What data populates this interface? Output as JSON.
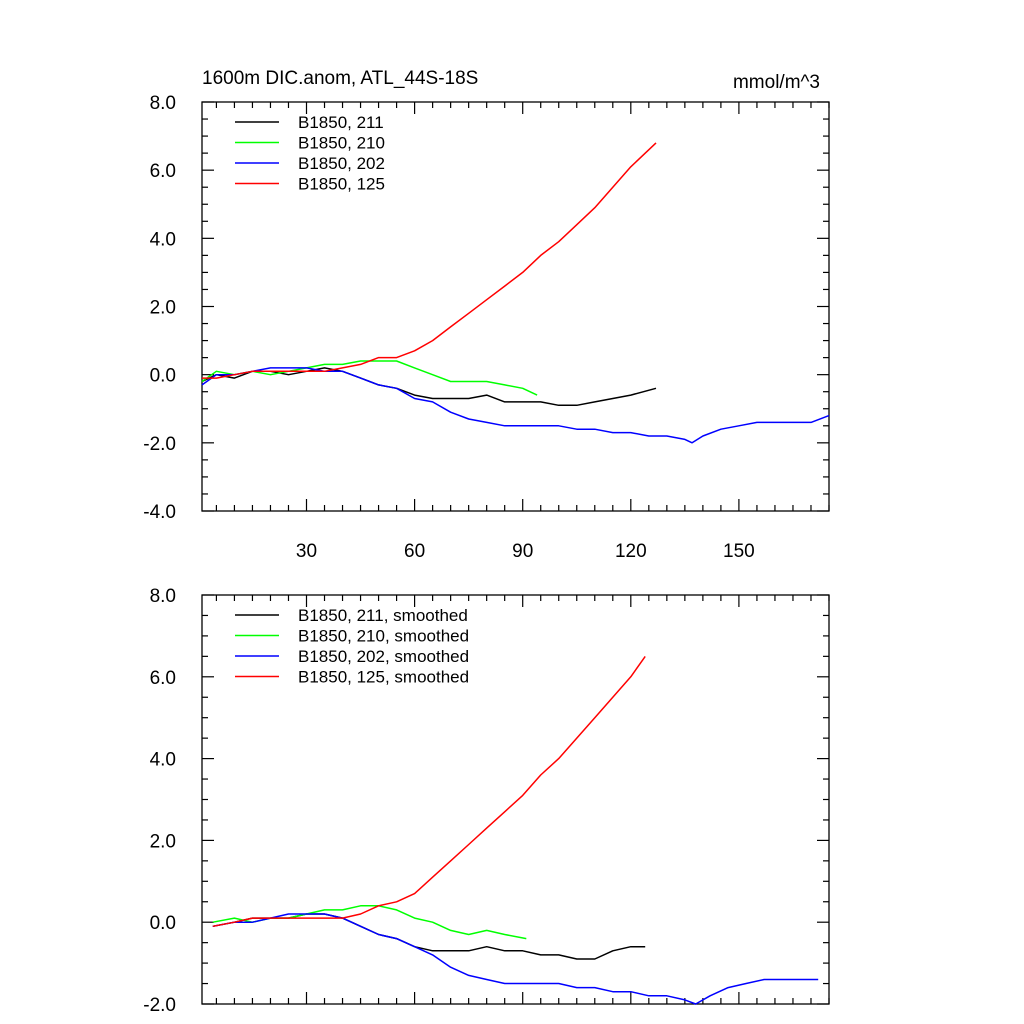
{
  "chart_data": [
    {
      "type": "line",
      "title": "1600m DIC.anom, ATL_44S-18S",
      "units": "mmol/m^3",
      "xlim": [
        1,
        175
      ],
      "ylim": [
        -4.0,
        8.0
      ],
      "xticks": [
        30,
        60,
        90,
        120,
        150
      ],
      "xtick_labels": [
        "30",
        "60",
        "90",
        "120",
        "150"
      ],
      "yticks": [
        -4.0,
        -2.0,
        0.0,
        2.0,
        4.0,
        6.0,
        8.0
      ],
      "ytick_labels": [
        "-4.0",
        "-2.0",
        "0.0",
        "2.0",
        "4.0",
        "6.0",
        "8.0"
      ],
      "legend_position": "top-left",
      "series": [
        {
          "name": "B1850, 211",
          "color": "#000000",
          "x": [
            1,
            5,
            10,
            15,
            20,
            25,
            30,
            35,
            40,
            45,
            50,
            55,
            60,
            65,
            70,
            75,
            80,
            85,
            90,
            95,
            100,
            105,
            110,
            115,
            120,
            127
          ],
          "y": [
            -0.2,
            0.0,
            -0.1,
            0.1,
            0.1,
            0.0,
            0.1,
            0.2,
            0.1,
            -0.1,
            -0.3,
            -0.4,
            -0.6,
            -0.7,
            -0.7,
            -0.7,
            -0.6,
            -0.8,
            -0.8,
            -0.8,
            -0.9,
            -0.9,
            -0.8,
            -0.7,
            -0.6,
            -0.4
          ]
        },
        {
          "name": "B1850, 210",
          "color": "#00ff00",
          "x": [
            1,
            5,
            10,
            15,
            20,
            25,
            30,
            35,
            40,
            45,
            50,
            55,
            60,
            65,
            70,
            75,
            80,
            85,
            90,
            94
          ],
          "y": [
            -0.2,
            0.1,
            0.0,
            0.1,
            0.0,
            0.1,
            0.2,
            0.3,
            0.3,
            0.4,
            0.4,
            0.4,
            0.2,
            0.0,
            -0.2,
            -0.2,
            -0.2,
            -0.3,
            -0.4,
            -0.6
          ]
        },
        {
          "name": "B1850, 202",
          "color": "#0000ff",
          "x": [
            1,
            5,
            10,
            15,
            20,
            25,
            30,
            35,
            40,
            45,
            50,
            55,
            60,
            65,
            70,
            75,
            80,
            85,
            90,
            95,
            100,
            105,
            110,
            115,
            120,
            125,
            130,
            135,
            137,
            140,
            145,
            150,
            155,
            160,
            165,
            170,
            175
          ],
          "y": [
            -0.3,
            0.0,
            0.0,
            0.1,
            0.2,
            0.2,
            0.2,
            0.1,
            0.1,
            -0.1,
            -0.3,
            -0.4,
            -0.7,
            -0.8,
            -1.1,
            -1.3,
            -1.4,
            -1.5,
            -1.5,
            -1.5,
            -1.5,
            -1.6,
            -1.6,
            -1.7,
            -1.7,
            -1.8,
            -1.8,
            -1.9,
            -2.0,
            -1.8,
            -1.6,
            -1.5,
            -1.4,
            -1.4,
            -1.4,
            -1.4,
            -1.2
          ]
        },
        {
          "name": "B1850, 125",
          "color": "#ff0000",
          "x": [
            1,
            5,
            10,
            15,
            20,
            25,
            30,
            35,
            40,
            45,
            50,
            55,
            60,
            65,
            70,
            75,
            80,
            85,
            90,
            95,
            100,
            105,
            110,
            115,
            120,
            127
          ],
          "y": [
            -0.1,
            -0.1,
            0.0,
            0.1,
            0.1,
            0.1,
            0.1,
            0.1,
            0.2,
            0.3,
            0.5,
            0.5,
            0.7,
            1.0,
            1.4,
            1.8,
            2.2,
            2.6,
            3.0,
            3.5,
            3.9,
            4.4,
            4.9,
            5.5,
            6.1,
            6.8
          ]
        }
      ]
    },
    {
      "type": "line",
      "xlim": [
        1,
        175
      ],
      "ylim": [
        -2.0,
        8.0
      ],
      "xticks": [
        30,
        60,
        90,
        120,
        150
      ],
      "yticks": [
        -2.0,
        0.0,
        2.0,
        4.0,
        6.0,
        8.0
      ],
      "ytick_labels": [
        "-2.0",
        "0.0",
        "2.0",
        "4.0",
        "6.0",
        "8.0"
      ],
      "legend_position": "top-left",
      "series": [
        {
          "name": "B1850, 211, smoothed",
          "color": "#000000",
          "x": [
            4,
            10,
            15,
            20,
            25,
            30,
            35,
            40,
            45,
            50,
            55,
            60,
            65,
            70,
            75,
            80,
            85,
            90,
            95,
            100,
            105,
            110,
            115,
            120,
            124
          ],
          "y": [
            -0.1,
            0.0,
            0.1,
            0.1,
            0.1,
            0.2,
            0.2,
            0.1,
            -0.1,
            -0.3,
            -0.4,
            -0.6,
            -0.7,
            -0.7,
            -0.7,
            -0.6,
            -0.7,
            -0.7,
            -0.8,
            -0.8,
            -0.9,
            -0.9,
            -0.7,
            -0.6,
            -0.6
          ]
        },
        {
          "name": "B1850, 210, smoothed",
          "color": "#00ff00",
          "x": [
            4,
            10,
            15,
            20,
            25,
            30,
            35,
            40,
            45,
            50,
            55,
            60,
            65,
            70,
            75,
            80,
            85,
            91
          ],
          "y": [
            0.0,
            0.1,
            0.0,
            0.1,
            0.1,
            0.2,
            0.3,
            0.3,
            0.4,
            0.4,
            0.3,
            0.1,
            0.0,
            -0.2,
            -0.3,
            -0.2,
            -0.3,
            -0.4
          ]
        },
        {
          "name": "B1850, 202, smoothed",
          "color": "#0000ff",
          "x": [
            4,
            10,
            15,
            20,
            25,
            30,
            35,
            40,
            45,
            50,
            55,
            60,
            65,
            70,
            75,
            80,
            85,
            90,
            95,
            100,
            105,
            110,
            115,
            120,
            125,
            130,
            135,
            138,
            142,
            147,
            152,
            157,
            162,
            167,
            172
          ],
          "y": [
            -0.1,
            0.0,
            0.0,
            0.1,
            0.2,
            0.2,
            0.2,
            0.1,
            -0.1,
            -0.3,
            -0.4,
            -0.6,
            -0.8,
            -1.1,
            -1.3,
            -1.4,
            -1.5,
            -1.5,
            -1.5,
            -1.5,
            -1.6,
            -1.6,
            -1.7,
            -1.7,
            -1.8,
            -1.8,
            -1.9,
            -2.0,
            -1.8,
            -1.6,
            -1.5,
            -1.4,
            -1.4,
            -1.4,
            -1.4
          ]
        },
        {
          "name": "B1850, 125, smoothed",
          "color": "#ff0000",
          "x": [
            4,
            10,
            15,
            20,
            25,
            30,
            35,
            40,
            45,
            50,
            55,
            60,
            65,
            70,
            75,
            80,
            85,
            90,
            95,
            100,
            105,
            110,
            115,
            120,
            124
          ],
          "y": [
            -0.1,
            0.0,
            0.1,
            0.1,
            0.1,
            0.1,
            0.1,
            0.1,
            0.2,
            0.4,
            0.5,
            0.7,
            1.1,
            1.5,
            1.9,
            2.3,
            2.7,
            3.1,
            3.6,
            4.0,
            4.5,
            5.0,
            5.5,
            6.0,
            6.5
          ]
        }
      ]
    }
  ]
}
